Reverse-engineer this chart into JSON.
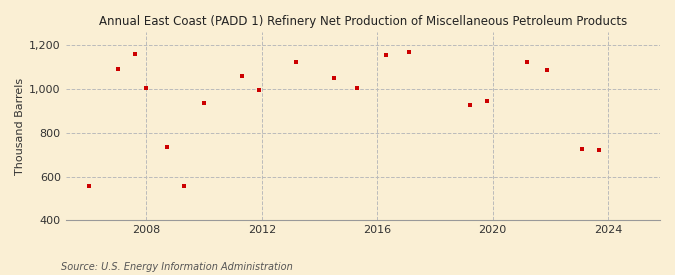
{
  "title": "Annual East Coast (PADD 1) Refinery Net Production of Miscellaneous Petroleum Products",
  "ylabel": "Thousand Barrels",
  "source": "Source: U.S. Energy Information Administration",
  "background_color": "#faefd4",
  "plot_bg_color": "#faefd4",
  "scatter_color": "#cc0000",
  "xlim": [
    2005.2,
    2025.8
  ],
  "ylim": [
    400,
    1260
  ],
  "yticks": [
    400,
    600,
    800,
    1000,
    1200
  ],
  "ytick_labels": [
    "400",
    "600",
    "800",
    "1,000",
    "1,200"
  ],
  "xticks": [
    2008,
    2012,
    2016,
    2020,
    2024
  ],
  "grid_color": "#bbbbbb",
  "years": [
    2006,
    2007,
    2007.6,
    2008,
    2008.7,
    2009.3,
    2010,
    2011.3,
    2011.9,
    2013.2,
    2014.5,
    2015.3,
    2016.3,
    2017.1,
    2019.2,
    2019.8,
    2021.2,
    2021.9,
    2023.1,
    2023.7
  ],
  "values": [
    555,
    1090,
    1160,
    1005,
    735,
    555,
    935,
    1060,
    995,
    1125,
    1050,
    1005,
    1155,
    1170,
    925,
    945,
    1125,
    1085,
    725,
    720
  ]
}
